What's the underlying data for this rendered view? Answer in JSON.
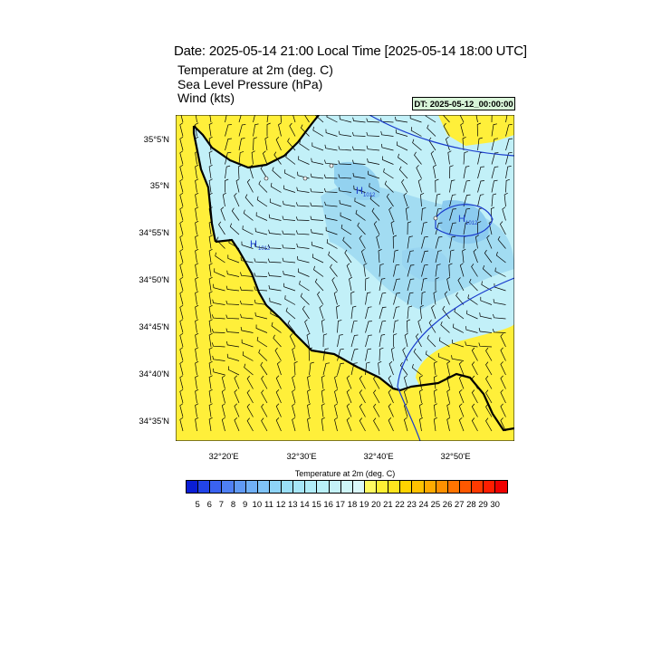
{
  "header": {
    "title": "Date: 2025-05-14  21:00 Local Time [2025-05-14  18:00 UTC]",
    "fields": [
      "Temperature at 2m   (deg. C)",
      "Sea Level Pressure   (hPa)",
      "Wind   (kts)"
    ],
    "dt_box": "DT: 2025-05-12_00:00:00"
  },
  "map": {
    "lat_labels": [
      "35°5'N",
      "35°N",
      "34°55'N",
      "34°50'N",
      "34°45'N",
      "34°40'N",
      "34°35'N"
    ],
    "lon_labels": [
      "32°20'E",
      "32°30'E",
      "32°40'E",
      "32°50'E"
    ],
    "pressure_labels": [
      {
        "mark": "H",
        "value": "1012"
      },
      {
        "mark": "H",
        "value": "1012"
      },
      {
        "mark": "H",
        "value": "1012"
      }
    ],
    "colors": {
      "land": "#ffef3a",
      "sea_light": "#c2f0f8",
      "sea_mid": "#a6e2f2",
      "sea_dark": "#8ecff0",
      "coast": "#000000",
      "isobar": "#1a3ccc"
    }
  },
  "colorbar": {
    "title": "Temperature at 2m  (deg. C)",
    "labels": [
      "5",
      "6",
      "7",
      "8",
      "9",
      "10",
      "11",
      "12",
      "13",
      "14",
      "15",
      "16",
      "17",
      "18",
      "19",
      "20",
      "21",
      "22",
      "23",
      "24",
      "25",
      "26",
      "27",
      "28",
      "29",
      "30"
    ],
    "colors": [
      "#0a1ed6",
      "#2244e8",
      "#3a62f0",
      "#4f80f4",
      "#609af4",
      "#70b0f6",
      "#80c4f8",
      "#8ed4f8",
      "#9adff8",
      "#a6e6f8",
      "#b0ecf8",
      "#baf0f8",
      "#c4f2f8",
      "#ceF6f8",
      "#daf8fa",
      "#fffa60",
      "#fff034",
      "#ffe41e",
      "#ffd400",
      "#ffc200",
      "#ffaa00",
      "#ff9000",
      "#ff7400",
      "#ff5800",
      "#ff3a00",
      "#ff1e00",
      "#f00000"
    ]
  }
}
